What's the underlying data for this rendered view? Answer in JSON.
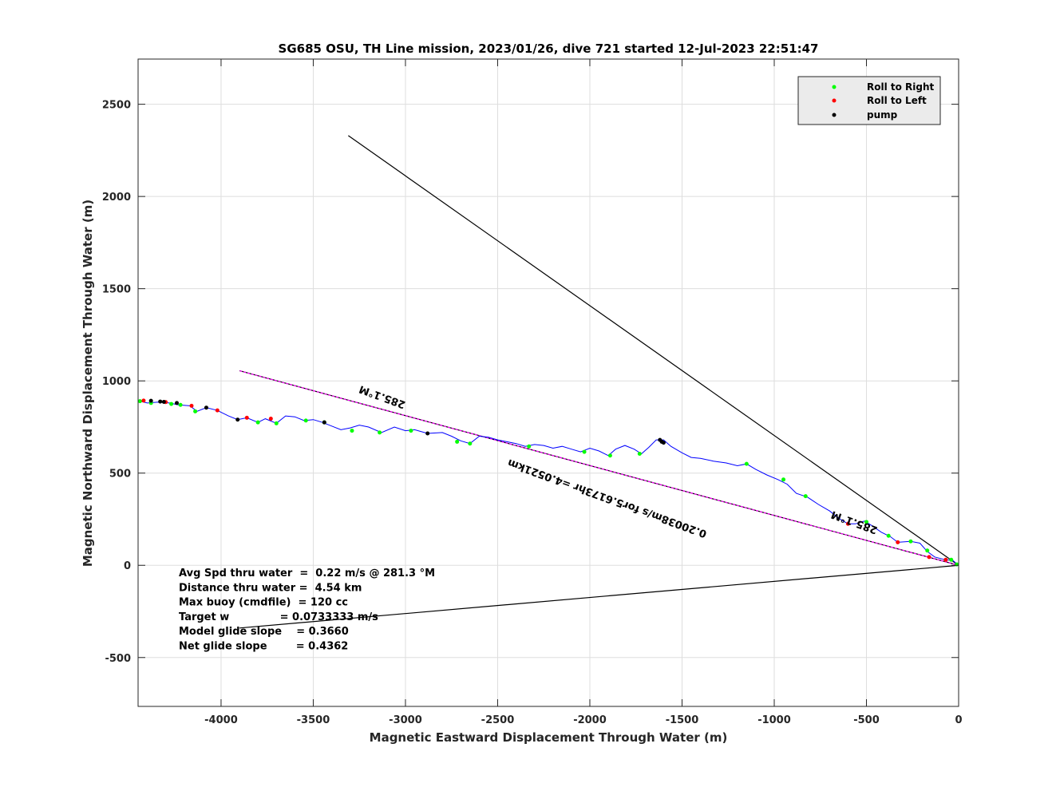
{
  "chart_data": {
    "type": "line",
    "title": "SG685 OSU, TH Line mission, 2023/01/26, dive 721 started 12-Jul-2023 22:51:47",
    "xlabel": "Magnetic Eastward Displacement Through Water (m)",
    "ylabel": "Magnetic Northward Displacement Through Water (m)",
    "xlim": [
      -4450,
      0
    ],
    "ylim": [
      -765,
      2745
    ],
    "xticks": [
      -4000,
      -3500,
      -3000,
      -2500,
      -2000,
      -1500,
      -1000,
      -500,
      0
    ],
    "yticks": [
      -500,
      0,
      500,
      1000,
      1500,
      2000,
      2500
    ],
    "grid": true,
    "legend": {
      "placement": "top-right",
      "entries": [
        {
          "label": "Roll to Right",
          "color": "#00ff00"
        },
        {
          "label": "Roll to Left",
          "color": "#ff0000"
        },
        {
          "label": "pump",
          "color": "#000000"
        }
      ]
    },
    "track": {
      "color": "#0000ff",
      "points": [
        [
          0,
          0
        ],
        [
          -30,
          25
        ],
        [
          -80,
          32
        ],
        [
          -130,
          45
        ],
        [
          -170,
          75
        ],
        [
          -210,
          120
        ],
        [
          -260,
          130
        ],
        [
          -330,
          125
        ],
        [
          -370,
          155
        ],
        [
          -420,
          180
        ],
        [
          -470,
          215
        ],
        [
          -510,
          240
        ],
        [
          -560,
          225
        ],
        [
          -600,
          225
        ],
        [
          -650,
          255
        ],
        [
          -700,
          295
        ],
        [
          -760,
          330
        ],
        [
          -820,
          370
        ],
        [
          -880,
          390
        ],
        [
          -930,
          440
        ],
        [
          -980,
          465
        ],
        [
          -1040,
          490
        ],
        [
          -1100,
          520
        ],
        [
          -1150,
          550
        ],
        [
          -1200,
          540
        ],
        [
          -1260,
          555
        ],
        [
          -1330,
          565
        ],
        [
          -1400,
          580
        ],
        [
          -1450,
          585
        ],
        [
          -1500,
          610
        ],
        [
          -1560,
          645
        ],
        [
          -1600,
          680
        ],
        [
          -1640,
          680
        ],
        [
          -1680,
          640
        ],
        [
          -1720,
          605
        ],
        [
          -1760,
          630
        ],
        [
          -1810,
          650
        ],
        [
          -1860,
          630
        ],
        [
          -1900,
          595
        ],
        [
          -1950,
          620
        ],
        [
          -2000,
          635
        ],
        [
          -2050,
          615
        ],
        [
          -2100,
          630
        ],
        [
          -2150,
          645
        ],
        [
          -2200,
          635
        ],
        [
          -2250,
          650
        ],
        [
          -2300,
          655
        ],
        [
          -2350,
          645
        ],
        [
          -2400,
          660
        ],
        [
          -2450,
          670
        ],
        [
          -2500,
          680
        ],
        [
          -2550,
          695
        ],
        [
          -2600,
          700
        ],
        [
          -2650,
          660
        ],
        [
          -2700,
          675
        ],
        [
          -2750,
          700
        ],
        [
          -2800,
          720
        ],
        [
          -2880,
          715
        ],
        [
          -2950,
          735
        ],
        [
          -3000,
          730
        ],
        [
          -3060,
          750
        ],
        [
          -3130,
          720
        ],
        [
          -3200,
          750
        ],
        [
          -3250,
          760
        ],
        [
          -3300,
          745
        ],
        [
          -3350,
          735
        ],
        [
          -3400,
          755
        ],
        [
          -3450,
          775
        ],
        [
          -3500,
          790
        ],
        [
          -3550,
          785
        ],
        [
          -3600,
          805
        ],
        [
          -3650,
          810
        ],
        [
          -3700,
          770
        ],
        [
          -3760,
          795
        ],
        [
          -3800,
          775
        ],
        [
          -3860,
          800
        ],
        [
          -3910,
          790
        ],
        [
          -3960,
          810
        ],
        [
          -4020,
          840
        ],
        [
          -4080,
          855
        ],
        [
          -4130,
          835
        ],
        [
          -4170,
          865
        ],
        [
          -4230,
          870
        ],
        [
          -4280,
          880
        ],
        [
          -4340,
          885
        ],
        [
          -4400,
          880
        ],
        [
          -4440,
          890
        ]
      ]
    },
    "roll_right_points": [
      [
        -10,
        5
      ],
      [
        -40,
        30
      ],
      [
        -170,
        80
      ],
      [
        -260,
        130
      ],
      [
        -380,
        160
      ],
      [
        -500,
        235
      ],
      [
        -830,
        375
      ],
      [
        -950,
        465
      ],
      [
        -1150,
        550
      ],
      [
        -1730,
        605
      ],
      [
        -1890,
        595
      ],
      [
        -2030,
        615
      ],
      [
        -2330,
        645
      ],
      [
        -2650,
        660
      ],
      [
        -2720,
        670
      ],
      [
        -2970,
        730
      ],
      [
        -3140,
        720
      ],
      [
        -3290,
        730
      ],
      [
        -3440,
        775
      ],
      [
        -3540,
        785
      ],
      [
        -3700,
        770
      ],
      [
        -3800,
        775
      ],
      [
        -4140,
        835
      ],
      [
        -4220,
        870
      ],
      [
        -4270,
        875
      ],
      [
        -4380,
        880
      ],
      [
        -4440,
        890
      ]
    ],
    "roll_left_points": [
      [
        -70,
        30
      ],
      [
        -160,
        45
      ],
      [
        -330,
        125
      ],
      [
        -600,
        225
      ],
      [
        -3730,
        795
      ],
      [
        -3860,
        800
      ],
      [
        -4020,
        840
      ],
      [
        -4160,
        865
      ],
      [
        -4300,
        885
      ],
      [
        -4420,
        893
      ]
    ],
    "pump_points": [
      [
        -3910,
        790
      ],
      [
        -3440,
        775
      ],
      [
        -2880,
        715
      ],
      [
        -1620,
        680
      ],
      [
        -1610,
        670
      ],
      [
        -1600,
        665
      ],
      [
        -4080,
        855
      ],
      [
        -4240,
        880
      ],
      [
        -4330,
        888
      ],
      [
        -4380,
        892
      ],
      [
        -4310,
        886
      ]
    ],
    "heading_lines": [
      {
        "from": [
          0,
          0
        ],
        "to": [
          -3310,
          2330
        ],
        "color": "#000000"
      },
      {
        "from": [
          0,
          0
        ],
        "to": [
          -3900,
          1055
        ],
        "color": "#000000"
      },
      {
        "from": [
          0,
          0
        ],
        "to": [
          -3900,
          -340
        ],
        "color": "#000000"
      },
      {
        "from": [
          0,
          0
        ],
        "to": [
          -3900,
          1055
        ],
        "color": "#ff00ff",
        "dashed": true
      }
    ],
    "annotations": [
      {
        "text": "285.1°M",
        "x": -3120,
        "y": 930
      },
      {
        "text": "285.1°M",
        "x": -560,
        "y": 250
      },
      {
        "text": "0.20038m/s for5.6173hr =4.0521km",
        "x": -1900,
        "y": 380
      }
    ],
    "stats": [
      "Avg Spd thru water  =  0.22 m/s @ 281.3 °M",
      "Distance thru water =  4.54 km",
      "Max buoy (cmdfile)  = 120 cc",
      "Target w              = 0.0733333 m/s",
      "Model glide slope    = 0.3660",
      "Net glide slope        = 0.4362"
    ]
  }
}
